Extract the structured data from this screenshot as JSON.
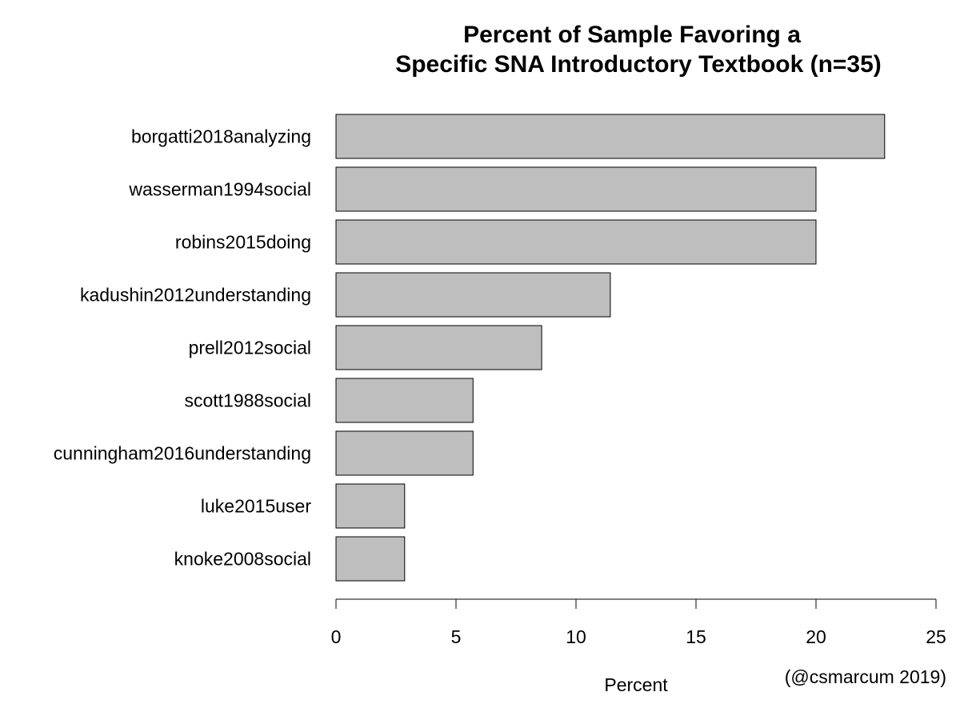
{
  "chart_data": {
    "type": "bar",
    "orientation": "horizontal",
    "title_lines": [
      "Percent of Sample Favoring a",
      "Specific SNA Introductory Textbook (n=35)"
    ],
    "xlabel": "Percent",
    "ylabel": "",
    "caption": "(@csmarcum 2019)",
    "categories": [
      "borgatti2018analyzing",
      "wasserman1994social",
      "robins2015doing",
      "kadushin2012understanding",
      "prell2012social",
      "scott1988social",
      "cunningham2016understanding",
      "luke2015user",
      "knoke2008social"
    ],
    "values": [
      22.86,
      20.0,
      20.0,
      11.43,
      8.57,
      5.71,
      5.71,
      2.86,
      2.86
    ],
    "xlim": [
      0,
      25
    ],
    "x_ticks": [
      0,
      5,
      10,
      15,
      20,
      25
    ],
    "grid": false,
    "legend": "none",
    "bar_color": "#bebebe",
    "bar_border_color": "#000000"
  }
}
